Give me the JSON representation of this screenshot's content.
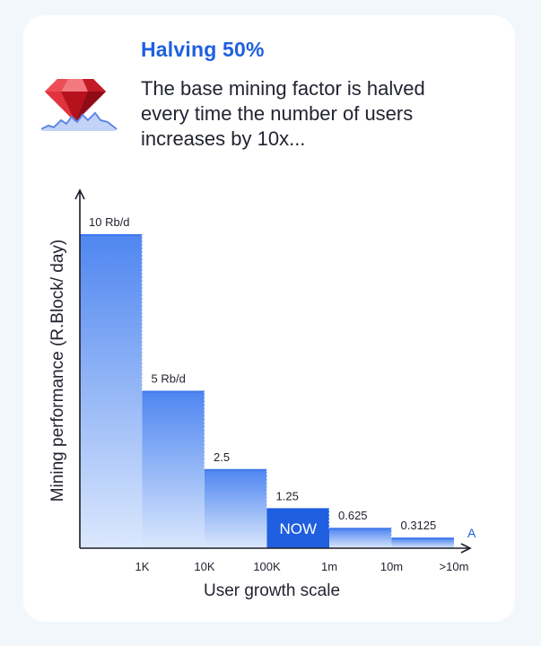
{
  "header": {
    "title": "Halving 50%",
    "description_lines": [
      "The base mining factor is halved",
      "every time the number of users",
      "increases by 10x..."
    ]
  },
  "logo": {
    "icon": "ruby-gem-icon"
  },
  "colors": {
    "accent": "#1f5fe0",
    "bar_top": "#4f86f0",
    "bar_bottom": "#dbe8fd",
    "highlight": "#1f5fe0",
    "axis": "#1b1d28"
  },
  "chart_data": {
    "type": "bar",
    "xlabel": "User growth scale",
    "ylabel": "Mining performance (R.Block/ day)",
    "x_ticks": [
      "1K",
      "10K",
      "100K",
      "1m",
      "10m",
      ">10m"
    ],
    "bars": [
      {
        "value": 10,
        "label": "10 Rb/d"
      },
      {
        "value": 5,
        "label": "5 Rb/d"
      },
      {
        "value": 2.5,
        "label": "2.5"
      },
      {
        "value": 1.25,
        "label": "1.25",
        "highlight": true,
        "badge": "NOW"
      },
      {
        "value": 0.625,
        "label": "0.625"
      },
      {
        "value": 0.3125,
        "label": "0.3125"
      }
    ],
    "end_marker": "A",
    "ylim": [
      0,
      10
    ],
    "grid": false,
    "legend": "none"
  }
}
